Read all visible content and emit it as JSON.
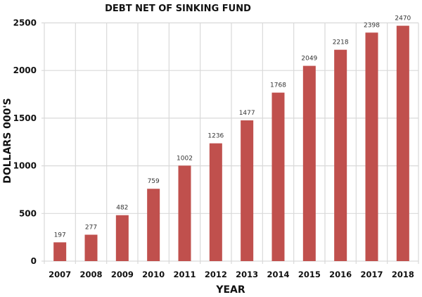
{
  "chart_data": {
    "type": "bar",
    "title": "DEBT NET OF SINKING FUND",
    "xlabel": "YEAR",
    "ylabel": "DOLLARS 000'S",
    "categories": [
      "2007",
      "2008",
      "2009",
      "2010",
      "2011",
      "2012",
      "2013",
      "2014",
      "2015",
      "2016",
      "2017",
      "2018"
    ],
    "values": [
      197,
      277,
      482,
      759,
      1002,
      1236,
      1477,
      1768,
      2049,
      2218,
      2398,
      2470
    ],
    "ylim": [
      0,
      2500
    ],
    "yticks": [
      0,
      500,
      1000,
      1500,
      2000,
      2500
    ],
    "grid": true,
    "bar_color": "#c0504d",
    "grid_color": "#d9d9d9"
  }
}
